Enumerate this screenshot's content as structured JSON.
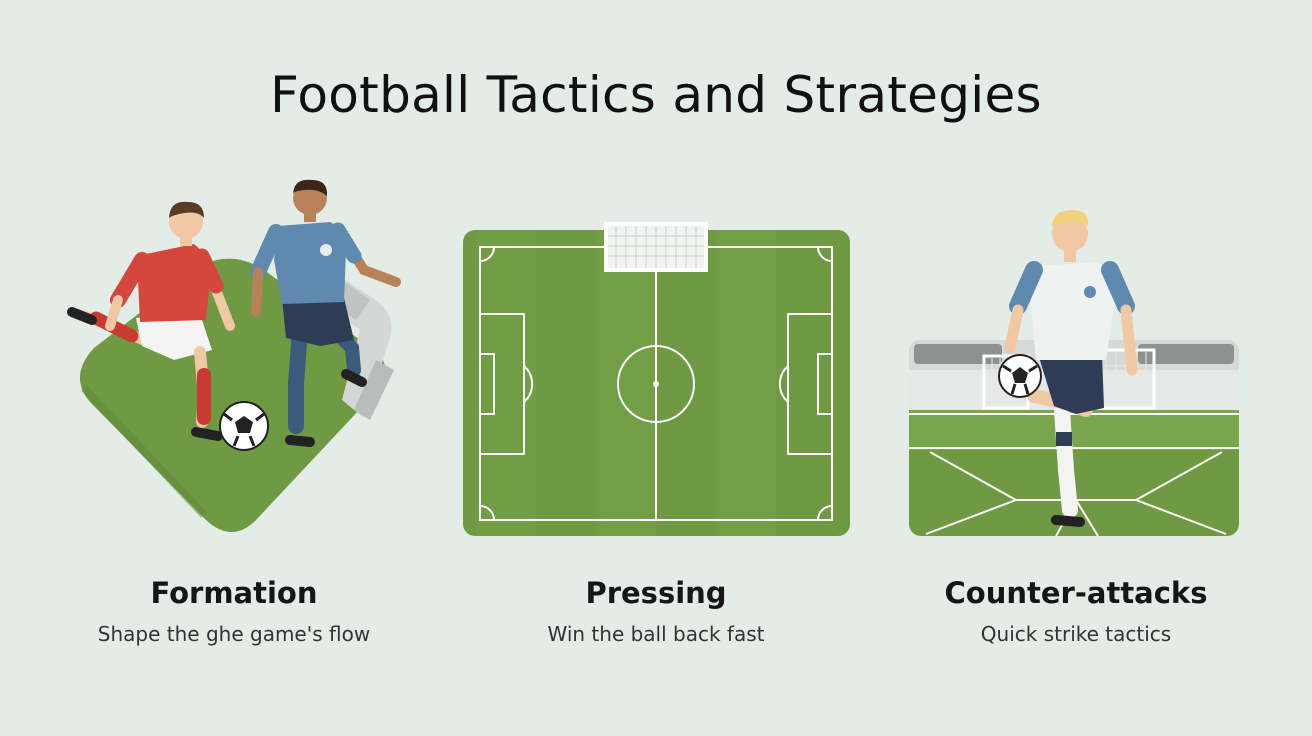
{
  "title": "Football Tactics and Strategies",
  "cards": [
    {
      "title": "Formation",
      "subtitle": "Shape the ghe game's flow",
      "illustration": "two-players-dribbling-icon"
    },
    {
      "title": "Pressing",
      "subtitle": "Win the ball back fast",
      "illustration": "football-pitch-icon"
    },
    {
      "title": "Counter-attacks",
      "subtitle": "Quick strike tactics",
      "illustration": "player-with-ball-icon"
    }
  ],
  "colors": {
    "background": "#e3ece6",
    "pitch_green": "#6f9a43",
    "pitch_green_light": "#7aa74c",
    "red_kit": "#d5473c",
    "blue_kit": "#6089b0",
    "white_kit": "#eef2f1",
    "navy_shorts": "#2f3c55"
  }
}
